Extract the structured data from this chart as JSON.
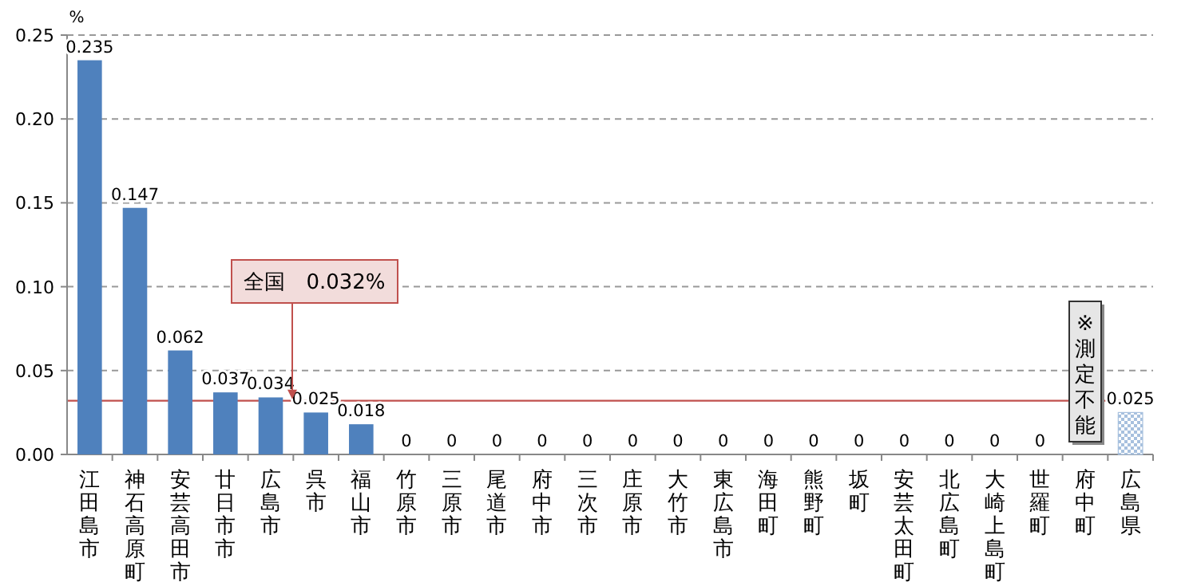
{
  "chart_data": {
    "type": "bar",
    "ylabel": "%",
    "categories": [
      "江田島市",
      "神石高原町",
      "安芸高田市",
      "廿日市市",
      "広島市",
      "呉市",
      "福山市",
      "竹原市",
      "三原市",
      "尾道市",
      "府中市",
      "三次市",
      "庄原市",
      "大竹市",
      "東広島市",
      "海田町",
      "熊野町",
      "坂町",
      "安芸太田町",
      "北広島町",
      "大崎上島町",
      "世羅町",
      "府中町",
      "広島県"
    ],
    "values": [
      0.235,
      0.147,
      0.062,
      0.037,
      0.034,
      0.025,
      0.018,
      0,
      0,
      0,
      0,
      0,
      0,
      0,
      0,
      0,
      0,
      0,
      0,
      0,
      0,
      0,
      null,
      0.025
    ],
    "colors": [
      "#4f81bd",
      "#4f81bd",
      "#4f81bd",
      "#4f81bd",
      "#4f81bd",
      "#4f81bd",
      "#4f81bd",
      "#4f81bd",
      "#4f81bd",
      "#4f81bd",
      "#4f81bd",
      "#4f81bd",
      "#4f81bd",
      "#4f81bd",
      "#4f81bd",
      "#4f81bd",
      "#4f81bd",
      "#4f81bd",
      "#4f81bd",
      "#4f81bd",
      "#4f81bd",
      "#4f81bd",
      null,
      "#a7c0de"
    ],
    "ylim": [
      0,
      0.25
    ],
    "yticks": [
      {
        "value": 0,
        "label": "0.00"
      },
      {
        "value": 0.05,
        "label": "0.05"
      },
      {
        "value": 0.1,
        "label": "0.10"
      },
      {
        "value": 0.15,
        "label": "0.15"
      },
      {
        "value": 0.2,
        "label": "0.20"
      },
      {
        "value": 0.25,
        "label": "0.25"
      }
    ],
    "grid": "y",
    "data_labels": true,
    "ref_lines": [
      {
        "axis": "y",
        "value": 0.032,
        "label": "全国　0.032%",
        "color": "#c0504d"
      }
    ],
    "annotations": [
      "※測定不能"
    ]
  }
}
